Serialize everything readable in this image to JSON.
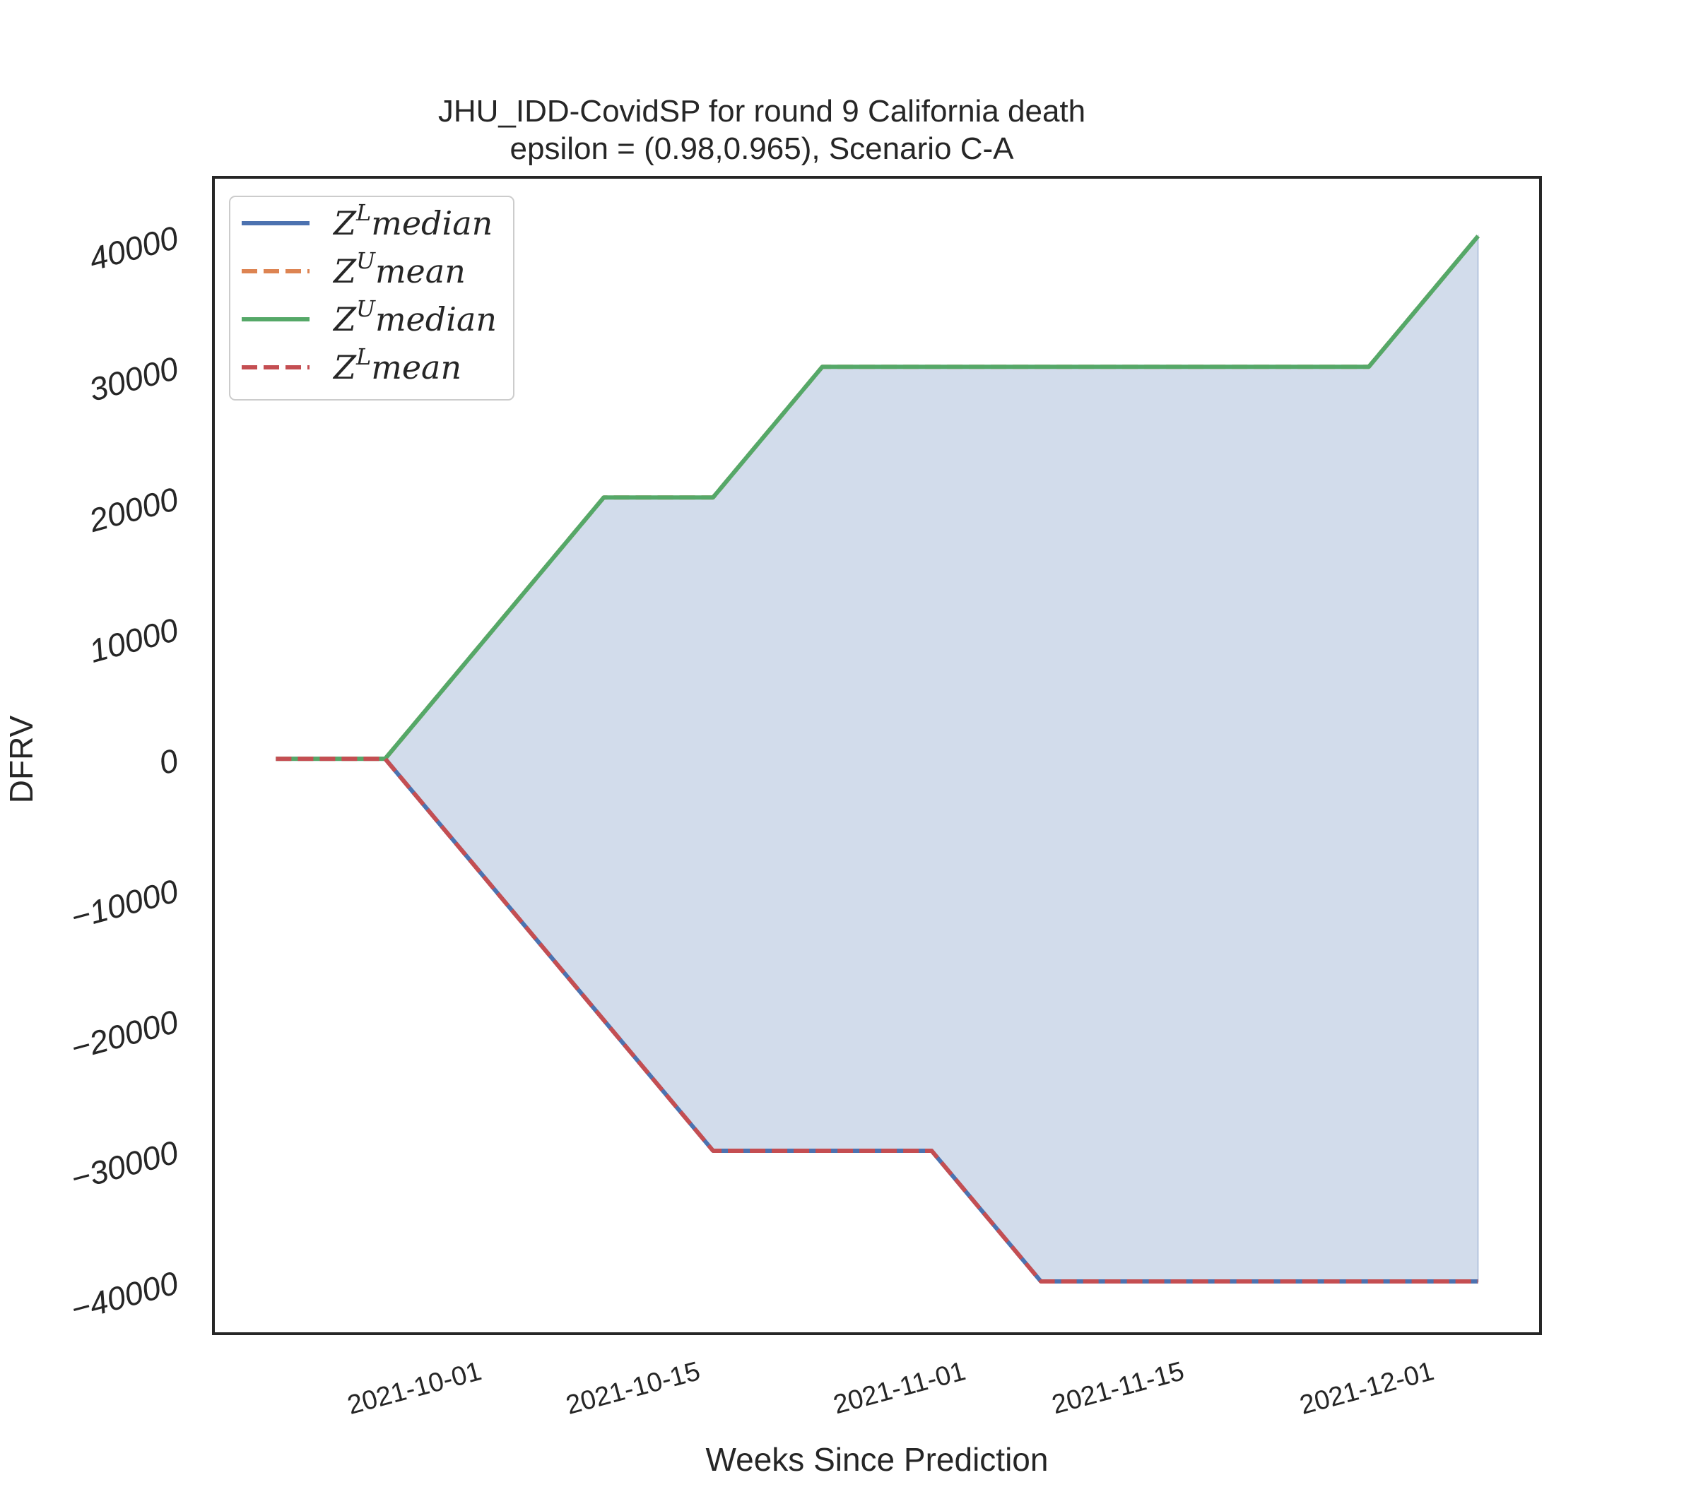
{
  "chart_data": {
    "type": "line",
    "title": "JHU_IDD-CovidSP for round 9 California  death",
    "subtitle": "epsilon = (0.98,0.965), Scenario C-A",
    "xlabel": "Weeks Since Prediction",
    "ylabel": "DFRV",
    "x_dates": [
      "2021-09-18",
      "2021-09-25",
      "2021-10-02",
      "2021-10-09",
      "2021-10-16",
      "2021-10-23",
      "2021-10-30",
      "2021-11-06",
      "2021-11-13",
      "2021-11-20",
      "2021-11-27",
      "2021-12-04"
    ],
    "x_range": [
      "2021-09-14",
      "2021-12-08"
    ],
    "ylim": [
      -44000,
      44500
    ],
    "yticks": [
      -40000,
      -30000,
      -20000,
      -10000,
      0,
      10000,
      20000,
      30000,
      40000
    ],
    "ytick_labels": [
      "−40000",
      "−30000",
      "−20000",
      "−10000",
      "0",
      "10000",
      "20000",
      "30000",
      "40000"
    ],
    "xticks": [
      "2021-10-01",
      "2021-10-15",
      "2021-11-01",
      "2021-11-15",
      "2021-12-01"
    ],
    "grid": false,
    "legend_position": "top-left",
    "series": [
      {
        "key": "zl_median",
        "legend_base": "Z",
        "legend_sup": "L",
        "legend_word": "median",
        "color": "#4c72b0",
        "dashed": false,
        "values": [
          0,
          0,
          -10000,
          -20000,
          -30000,
          -30000,
          -30000,
          -40000,
          -40000,
          -40000,
          -40000,
          -40000
        ]
      },
      {
        "key": "zu_mean",
        "legend_base": "Z",
        "legend_sup": "U",
        "legend_word": "mean",
        "color": "#dd8452",
        "dashed": true,
        "values": [
          0,
          0,
          10000,
          20000,
          20000,
          30000,
          30000,
          30000,
          30000,
          30000,
          30000,
          40000
        ]
      },
      {
        "key": "zu_median",
        "legend_base": "Z",
        "legend_sup": "U",
        "legend_word": "median",
        "color": "#55a868",
        "dashed": false,
        "values": [
          0,
          0,
          10000,
          20000,
          20000,
          30000,
          30000,
          30000,
          30000,
          30000,
          30000,
          40000
        ]
      },
      {
        "key": "zl_mean",
        "legend_base": "Z",
        "legend_sup": "L",
        "legend_word": "mean",
        "color": "#c44e52",
        "dashed": true,
        "values": [
          0,
          0,
          -10000,
          -20000,
          -30000,
          -30000,
          -30000,
          -40000,
          -40000,
          -40000,
          -40000,
          -40000
        ]
      }
    ],
    "fill_color": "#4c72b0"
  }
}
